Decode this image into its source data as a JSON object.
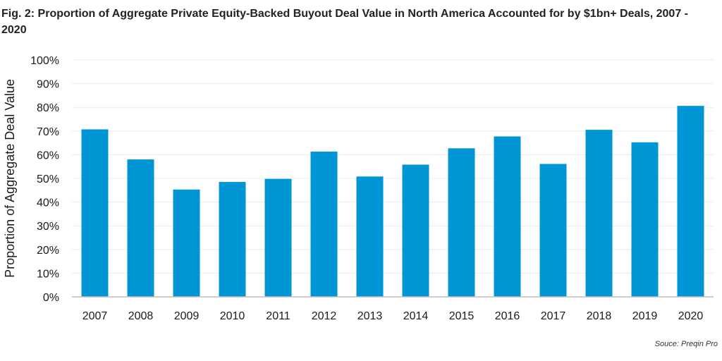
{
  "chart_data": {
    "type": "bar",
    "title": "Fig. 2: Proportion of Aggregate Private Equity-Backed Buyout Deal Value in North America Accounted for by $1bn+ Deals, 2007 - 2020",
    "xlabel": "",
    "ylabel": "Proportion of Aggregate Deal Value",
    "categories": [
      "2007",
      "2008",
      "2009",
      "2010",
      "2011",
      "2012",
      "2013",
      "2014",
      "2015",
      "2016",
      "2017",
      "2018",
      "2019",
      "2020"
    ],
    "values": [
      70.7,
      58.0,
      45.3,
      48.5,
      49.8,
      61.3,
      50.8,
      55.8,
      62.7,
      67.7,
      56.1,
      70.5,
      65.2,
      80.6
    ],
    "ylim": [
      0,
      100
    ],
    "yticks": [
      "0%",
      "10%",
      "20%",
      "30%",
      "40%",
      "50%",
      "60%",
      "70%",
      "80%",
      "90%",
      "100%"
    ],
    "grid": true,
    "bar_color": "#0096d6",
    "source": "Souce: Preqin Pro"
  }
}
